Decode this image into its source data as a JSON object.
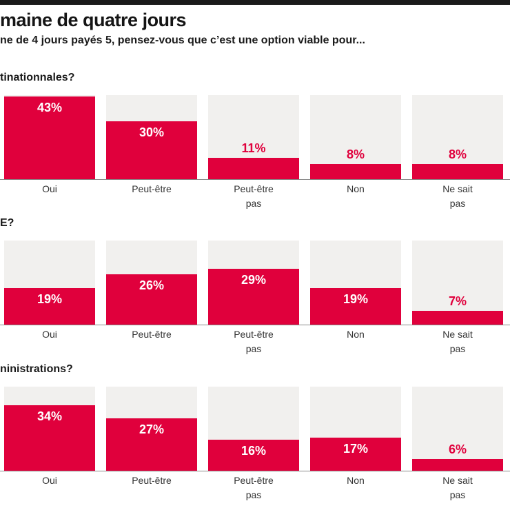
{
  "title": "maine de quatre jours",
  "subtitle": "ne de 4 jours payés 5, pensez-vous que c’est une option viable pour...",
  "colors": {
    "bar": "#e0003c",
    "background": "#f1f0ee"
  },
  "chart_data": [
    {
      "type": "bar",
      "title": "tinationnales?",
      "categories": [
        "Oui",
        "Peut-être",
        "Peut-être pas",
        "Non",
        "Ne sait pas"
      ],
      "values": [
        43,
        30,
        11,
        8,
        8
      ],
      "labels": [
        "43%",
        "30%",
        "11%",
        "8%",
        "8%"
      ]
    },
    {
      "type": "bar",
      "title": "E?",
      "categories": [
        "Oui",
        "Peut-être",
        "Peut-être pas",
        "Non",
        "Ne sait pas"
      ],
      "values": [
        19,
        26,
        29,
        19,
        7
      ],
      "labels": [
        "19%",
        "26%",
        "29%",
        "19%",
        "7%"
      ]
    },
    {
      "type": "bar",
      "title": "ninistrations?",
      "categories": [
        "Oui",
        "Peut-être",
        "Peut-être pas",
        "Non",
        "Ne sait pas"
      ],
      "values": [
        34,
        27,
        16,
        17,
        6
      ],
      "labels": [
        "34%",
        "27%",
        "16%",
        "17%",
        "6%"
      ]
    }
  ]
}
